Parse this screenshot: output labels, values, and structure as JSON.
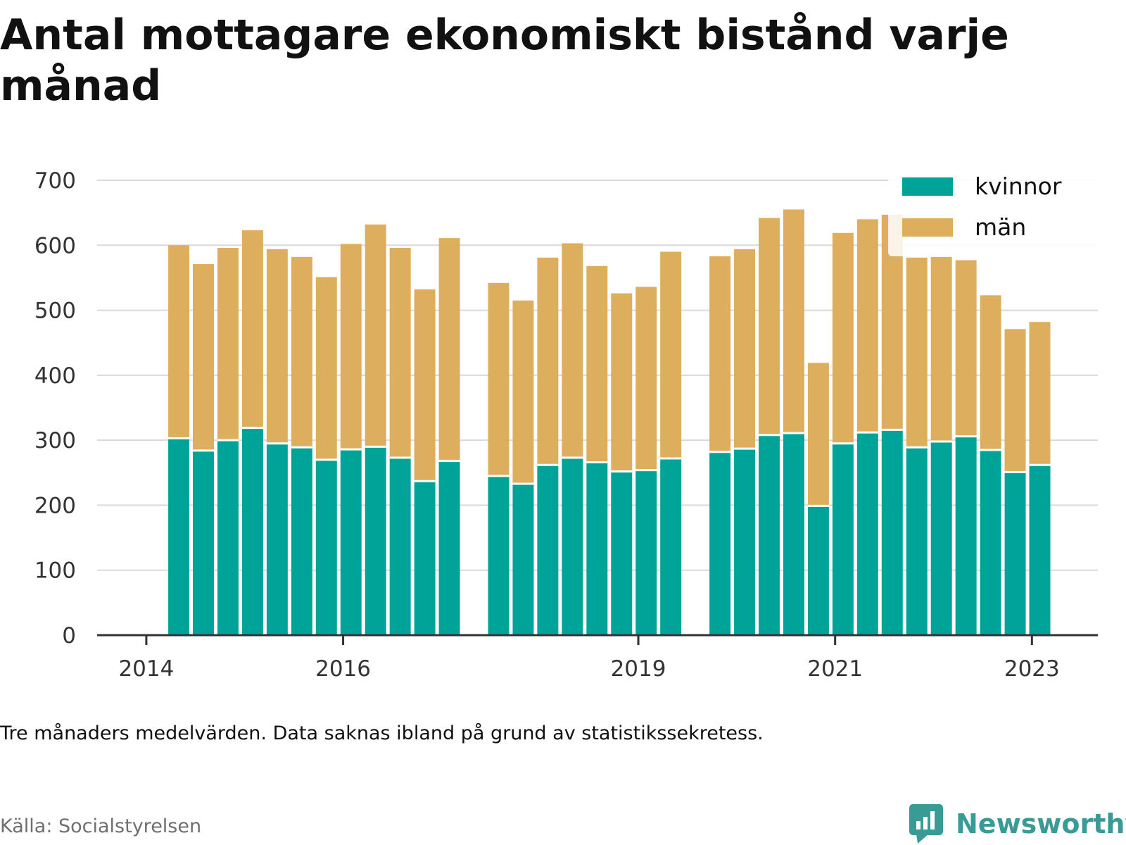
{
  "title": "Antal mottagare ekonomiskt bistånd varje månad",
  "note": "Tre månaders medelvärden. Data saknas ibland på grund av statistikssekretess.",
  "source": "Källa: Socialstyrelsen",
  "brand": "Newsworthy",
  "colors": {
    "kvinnor": "#00a398",
    "man": "#dcae5e",
    "grid": "#d9d9d9",
    "axis": "#333333",
    "brand": "#3a9a96"
  },
  "chart_data": {
    "type": "bar",
    "stacked": true,
    "ylim": [
      0,
      700
    ],
    "yticks": [
      0,
      100,
      200,
      300,
      400,
      500,
      600,
      700
    ],
    "xticks": [
      {
        "x": 2014.0,
        "label": "2014"
      },
      {
        "x": 2016.0,
        "label": "2016"
      },
      {
        "x": 2019.0,
        "label": "2019"
      },
      {
        "x": 2021.0,
        "label": "2021"
      },
      {
        "x": 2023.0,
        "label": "2023"
      }
    ],
    "xlim": [
      2013.5,
      2023.67
    ],
    "grid": true,
    "legend_position": "top-right",
    "x": [
      2014.33,
      2014.58,
      2014.83,
      2015.08,
      2015.33,
      2015.58,
      2015.83,
      2016.08,
      2016.33,
      2016.58,
      2016.83,
      2017.08,
      2017.58,
      2017.83,
      2018.08,
      2018.33,
      2018.58,
      2018.83,
      2019.08,
      2019.33,
      2019.83,
      2020.08,
      2020.33,
      2020.58,
      2020.83,
      2021.08,
      2021.33,
      2021.58,
      2021.83,
      2022.08,
      2022.33,
      2022.58,
      2022.83,
      2023.08
    ],
    "series": [
      {
        "name": "kvinnor",
        "values": [
          303,
          284,
          300,
          319,
          295,
          289,
          270,
          286,
          290,
          273,
          237,
          268,
          245,
          233,
          262,
          273,
          266,
          252,
          254,
          272,
          282,
          287,
          308,
          311,
          199,
          295,
          312,
          316,
          289,
          298,
          306,
          285,
          251,
          262
        ]
      },
      {
        "name": "män",
        "values": [
          297,
          287,
          296,
          304,
          299,
          293,
          281,
          316,
          342,
          323,
          295,
          343,
          297,
          282,
          319,
          330,
          302,
          274,
          282,
          318,
          301,
          307,
          334,
          344,
          220,
          324,
          328,
          331,
          292,
          284,
          271,
          238,
          220,
          220
        ]
      }
    ]
  }
}
